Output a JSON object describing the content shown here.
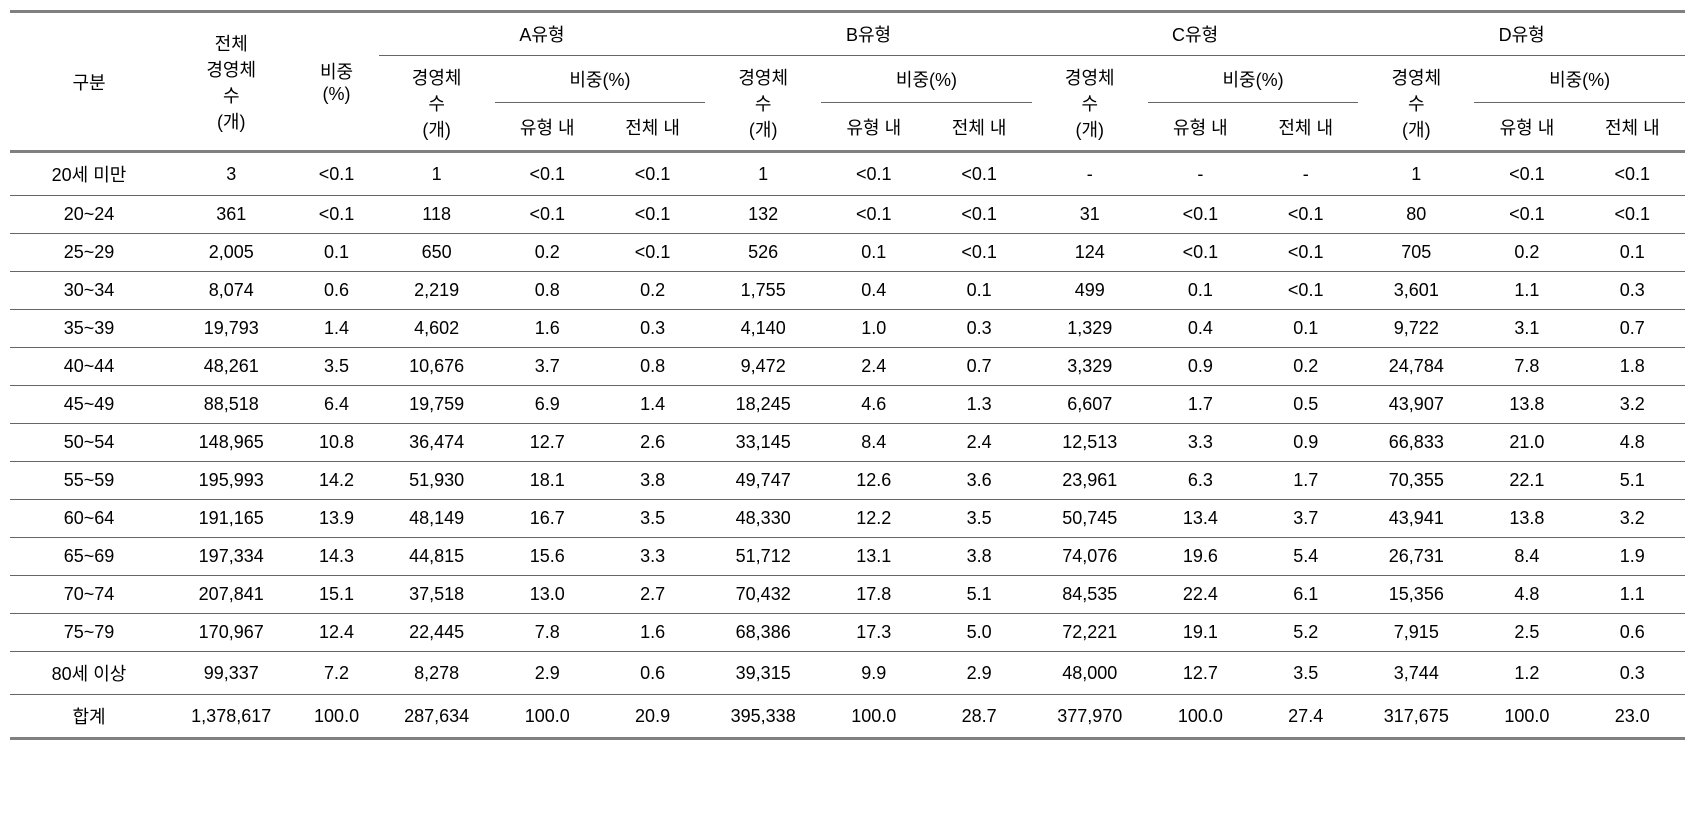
{
  "headers": {
    "gubun": "구분",
    "total_count": "전체\n경영체\n수\n(개)",
    "total_ratio": "비중\n(%)",
    "type_a": "A유형",
    "type_b": "B유형",
    "type_c": "C유형",
    "type_d": "D유형",
    "count": "경영체\n수\n(개)",
    "ratio": "비중(%)",
    "within_type": "유형 내",
    "within_total": "전체 내"
  },
  "rows": [
    {
      "label": "20세 미만",
      "total": [
        "3",
        "<0.1"
      ],
      "a": [
        "1",
        "<0.1",
        "<0.1"
      ],
      "b": [
        "1",
        "<0.1",
        "<0.1"
      ],
      "c": [
        "-",
        "-",
        "-"
      ],
      "d": [
        "1",
        "<0.1",
        "<0.1"
      ]
    },
    {
      "label": "20~24",
      "total": [
        "361",
        "<0.1"
      ],
      "a": [
        "118",
        "<0.1",
        "<0.1"
      ],
      "b": [
        "132",
        "<0.1",
        "<0.1"
      ],
      "c": [
        "31",
        "<0.1",
        "<0.1"
      ],
      "d": [
        "80",
        "<0.1",
        "<0.1"
      ]
    },
    {
      "label": "25~29",
      "total": [
        "2,005",
        "0.1"
      ],
      "a": [
        "650",
        "0.2",
        "<0.1"
      ],
      "b": [
        "526",
        "0.1",
        "<0.1"
      ],
      "c": [
        "124",
        "<0.1",
        "<0.1"
      ],
      "d": [
        "705",
        "0.2",
        "0.1"
      ]
    },
    {
      "label": "30~34",
      "total": [
        "8,074",
        "0.6"
      ],
      "a": [
        "2,219",
        "0.8",
        "0.2"
      ],
      "b": [
        "1,755",
        "0.4",
        "0.1"
      ],
      "c": [
        "499",
        "0.1",
        "<0.1"
      ],
      "d": [
        "3,601",
        "1.1",
        "0.3"
      ]
    },
    {
      "label": "35~39",
      "total": [
        "19,793",
        "1.4"
      ],
      "a": [
        "4,602",
        "1.6",
        "0.3"
      ],
      "b": [
        "4,140",
        "1.0",
        "0.3"
      ],
      "c": [
        "1,329",
        "0.4",
        "0.1"
      ],
      "d": [
        "9,722",
        "3.1",
        "0.7"
      ]
    },
    {
      "label": "40~44",
      "total": [
        "48,261",
        "3.5"
      ],
      "a": [
        "10,676",
        "3.7",
        "0.8"
      ],
      "b": [
        "9,472",
        "2.4",
        "0.7"
      ],
      "c": [
        "3,329",
        "0.9",
        "0.2"
      ],
      "d": [
        "24,784",
        "7.8",
        "1.8"
      ]
    },
    {
      "label": "45~49",
      "total": [
        "88,518",
        "6.4"
      ],
      "a": [
        "19,759",
        "6.9",
        "1.4"
      ],
      "b": [
        "18,245",
        "4.6",
        "1.3"
      ],
      "c": [
        "6,607",
        "1.7",
        "0.5"
      ],
      "d": [
        "43,907",
        "13.8",
        "3.2"
      ]
    },
    {
      "label": "50~54",
      "total": [
        "148,965",
        "10.8"
      ],
      "a": [
        "36,474",
        "12.7",
        "2.6"
      ],
      "b": [
        "33,145",
        "8.4",
        "2.4"
      ],
      "c": [
        "12,513",
        "3.3",
        "0.9"
      ],
      "d": [
        "66,833",
        "21.0",
        "4.8"
      ]
    },
    {
      "label": "55~59",
      "total": [
        "195,993",
        "14.2"
      ],
      "a": [
        "51,930",
        "18.1",
        "3.8"
      ],
      "b": [
        "49,747",
        "12.6",
        "3.6"
      ],
      "c": [
        "23,961",
        "6.3",
        "1.7"
      ],
      "d": [
        "70,355",
        "22.1",
        "5.1"
      ]
    },
    {
      "label": "60~64",
      "total": [
        "191,165",
        "13.9"
      ],
      "a": [
        "48,149",
        "16.7",
        "3.5"
      ],
      "b": [
        "48,330",
        "12.2",
        "3.5"
      ],
      "c": [
        "50,745",
        "13.4",
        "3.7"
      ],
      "d": [
        "43,941",
        "13.8",
        "3.2"
      ]
    },
    {
      "label": "65~69",
      "total": [
        "197,334",
        "14.3"
      ],
      "a": [
        "44,815",
        "15.6",
        "3.3"
      ],
      "b": [
        "51,712",
        "13.1",
        "3.8"
      ],
      "c": [
        "74,076",
        "19.6",
        "5.4"
      ],
      "d": [
        "26,731",
        "8.4",
        "1.9"
      ]
    },
    {
      "label": "70~74",
      "total": [
        "207,841",
        "15.1"
      ],
      "a": [
        "37,518",
        "13.0",
        "2.7"
      ],
      "b": [
        "70,432",
        "17.8",
        "5.1"
      ],
      "c": [
        "84,535",
        "22.4",
        "6.1"
      ],
      "d": [
        "15,356",
        "4.8",
        "1.1"
      ]
    },
    {
      "label": "75~79",
      "total": [
        "170,967",
        "12.4"
      ],
      "a": [
        "22,445",
        "7.8",
        "1.6"
      ],
      "b": [
        "68,386",
        "17.3",
        "5.0"
      ],
      "c": [
        "72,221",
        "19.1",
        "5.2"
      ],
      "d": [
        "7,915",
        "2.5",
        "0.6"
      ]
    },
    {
      "label": "80세 이상",
      "total": [
        "99,337",
        "7.2"
      ],
      "a": [
        "8,278",
        "2.9",
        "0.6"
      ],
      "b": [
        "39,315",
        "9.9",
        "2.9"
      ],
      "c": [
        "48,000",
        "12.7",
        "3.5"
      ],
      "d": [
        "3,744",
        "1.2",
        "0.3"
      ]
    },
    {
      "label": "합계",
      "total": [
        "1,378,617",
        "100.0"
      ],
      "a": [
        "287,634",
        "100.0",
        "20.9"
      ],
      "b": [
        "395,338",
        "100.0",
        "28.7"
      ],
      "c": [
        "377,970",
        "100.0",
        "27.4"
      ],
      "d": [
        "317,675",
        "100.0",
        "23.0"
      ]
    }
  ],
  "styling": {
    "border_color_thick": "#808080",
    "border_color_thin": "#666666",
    "background": "#ffffff",
    "text_color": "#000000",
    "font_size_pt": 14,
    "font_family": "Malgun Gothic"
  }
}
